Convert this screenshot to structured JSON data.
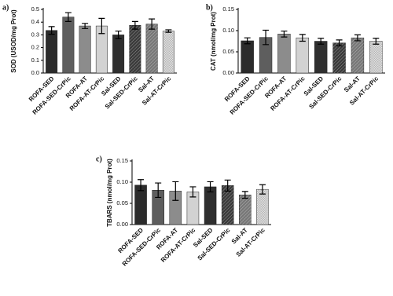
{
  "chart_data": [
    {
      "type": "bar",
      "panel": "a)",
      "ylabel": "SOD (USOD/mg Prot)",
      "categories": [
        "ROFA-SED",
        "ROFA-SED-CrPic",
        "ROFA-AT",
        "ROFA-AT-CrPic",
        "Sal-SED",
        "Sal-SED-CrPic",
        "Sal-AT",
        "Sal-AT-CrPic"
      ],
      "values": [
        0.335,
        0.44,
        0.37,
        0.37,
        0.3,
        0.375,
        0.385,
        0.33
      ],
      "errors": [
        0.03,
        0.035,
        0.02,
        0.06,
        0.03,
        0.03,
        0.04,
        0.01
      ],
      "colors": [
        "#2b2b2b",
        "#5e5e5e",
        "#8c8c8c",
        "#d2d2d2",
        "#2f2f2f",
        "#3a3a3a",
        "#777777",
        "#e2e2e2"
      ],
      "patterns": [
        "solid",
        "solid",
        "solid",
        "solid",
        "solid",
        "diagonal",
        "diagonal",
        "check"
      ],
      "ylim": [
        0,
        0.5
      ],
      "yticks": [
        {
          "value": 0,
          "label": "0.0"
        },
        0.1,
        0.2,
        0.3,
        0.4,
        0.5
      ]
    },
    {
      "type": "bar",
      "panel": "b)",
      "ylabel": "CAT (nmol/mg Prot)",
      "categories": [
        "ROFA-SED",
        "ROFA-SED-CrPic",
        "ROFA-AT",
        "ROFA-AT-CrPic",
        "Sal-SED",
        "Sal-SED-CrPic",
        "Sal-AT",
        "Sal-AT-CrPic"
      ],
      "values": [
        0.076,
        0.084,
        0.092,
        0.083,
        0.075,
        0.071,
        0.083,
        0.075
      ],
      "errors": [
        0.007,
        0.017,
        0.007,
        0.008,
        0.007,
        0.007,
        0.007,
        0.007
      ],
      "colors": [
        "#2b2b2b",
        "#5e5e5e",
        "#8c8c8c",
        "#d2d2d2",
        "#2f2f2f",
        "#3a3a3a",
        "#777777",
        "#e2e2e2"
      ],
      "patterns": [
        "solid",
        "solid",
        "solid",
        "solid",
        "solid",
        "diagonal",
        "diagonal",
        "check"
      ],
      "ylim": [
        0,
        0.15
      ],
      "yticks": [
        {
          "value": 0,
          "label": "0.00"
        },
        0.05,
        {
          "value": 0.1,
          "label": "0.10"
        },
        0.15
      ]
    },
    {
      "type": "bar",
      "panel": "c)",
      "ylabel": "TBARS (nmol/mg Prot)",
      "categories": [
        "ROFA-SED",
        "ROFA-SED-CrPic",
        "ROFA-AT",
        "ROFA-AT-CrPic",
        "Sal-SED",
        "Sal-SED-CrPic",
        "Sal-AT",
        "Sal-AT-CrPic"
      ],
      "values": [
        0.093,
        0.081,
        0.079,
        0.077,
        0.089,
        0.092,
        0.07,
        0.083
      ],
      "errors": [
        0.013,
        0.017,
        0.022,
        0.012,
        0.012,
        0.013,
        0.008,
        0.011
      ],
      "colors": [
        "#2b2b2b",
        "#5e5e5e",
        "#8c8c8c",
        "#d2d2d2",
        "#2f2f2f",
        "#3a3a3a",
        "#777777",
        "#e2e2e2"
      ],
      "patterns": [
        "solid",
        "solid",
        "solid",
        "solid",
        "solid",
        "diagonal",
        "diagonal",
        "check"
      ],
      "ylim": [
        0,
        0.15
      ],
      "yticks": [
        {
          "value": 0,
          "label": "0.00"
        },
        0.05,
        {
          "value": 0.1,
          "label": "0.10"
        },
        0.15
      ]
    }
  ]
}
